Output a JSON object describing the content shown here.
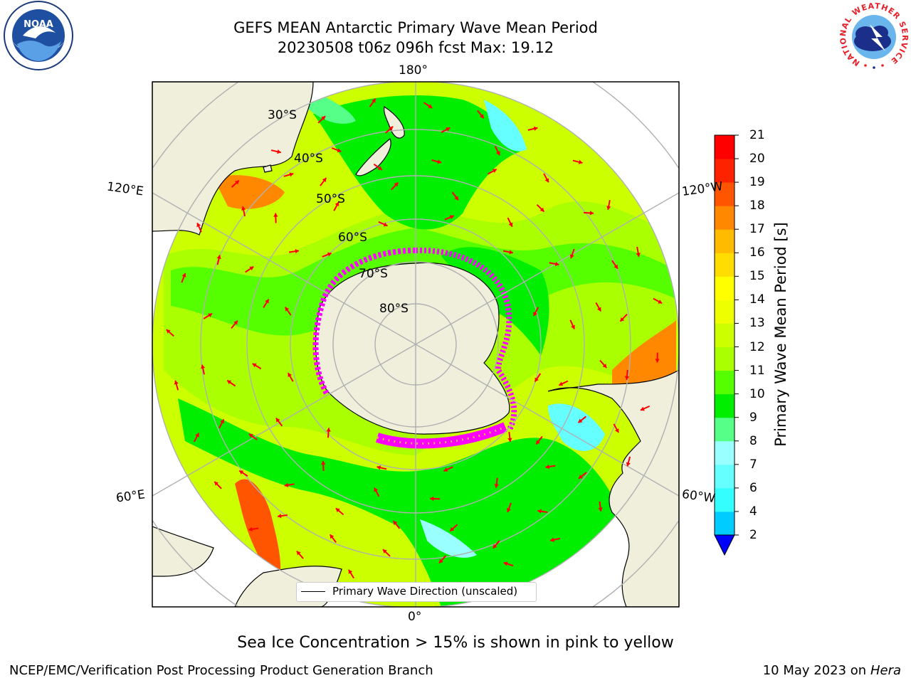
{
  "header": {
    "title_line1": "GEFS MEAN Antarctic Primary Wave Mean Period",
    "title_line2": "20230508 t06z 096h fcst   Max: 19.12"
  },
  "logos": {
    "left": "NOAA",
    "right_ring_text": "NATIONAL WEATHER SERVICE"
  },
  "map": {
    "projection": "south-polar stereographic",
    "longitude_labels": {
      "top": "180°",
      "bottom": "0°",
      "left_upper": "120°E",
      "left_lower": "60°E",
      "right_upper": "120°W",
      "right_lower": "60°W"
    },
    "latitude_labels": [
      "30°S",
      "40°S",
      "50°S",
      "60°S",
      "70°S",
      "80°S"
    ],
    "legend_text": "Primary Wave Direction (unscaled)",
    "arrow_color": "#ff0000",
    "land_color": "#efefdc",
    "ice_colors": [
      "#ff00ff",
      "#ffaa55",
      "#ffff00"
    ]
  },
  "colorbar": {
    "label": "Primary Wave Mean Period [s]",
    "ticks": [
      "2",
      "4",
      "6",
      "7",
      "8",
      "9",
      "10",
      "11",
      "12",
      "13",
      "14",
      "15",
      "16",
      "17",
      "18",
      "19",
      "20",
      "21"
    ],
    "colors": [
      "#0066ff",
      "#00ccff",
      "#33ffff",
      "#66ffff",
      "#99ffff",
      "#55ff88",
      "#00ee00",
      "#55ff00",
      "#aaff00",
      "#ccff00",
      "#eeff00",
      "#ffff00",
      "#ffdd00",
      "#ffbb00",
      "#ff8800",
      "#ff5500",
      "#ff2200",
      "#ff0000"
    ],
    "extend_color": "#0000ff"
  },
  "caption": "Sea Ice Concentration > 15% is shown in pink to yellow",
  "footer": {
    "left": "NCEP/EMC/Verification Post Processing Product Generation Branch",
    "right_date": "10 May 2023 on",
    "right_host": "Hera"
  }
}
